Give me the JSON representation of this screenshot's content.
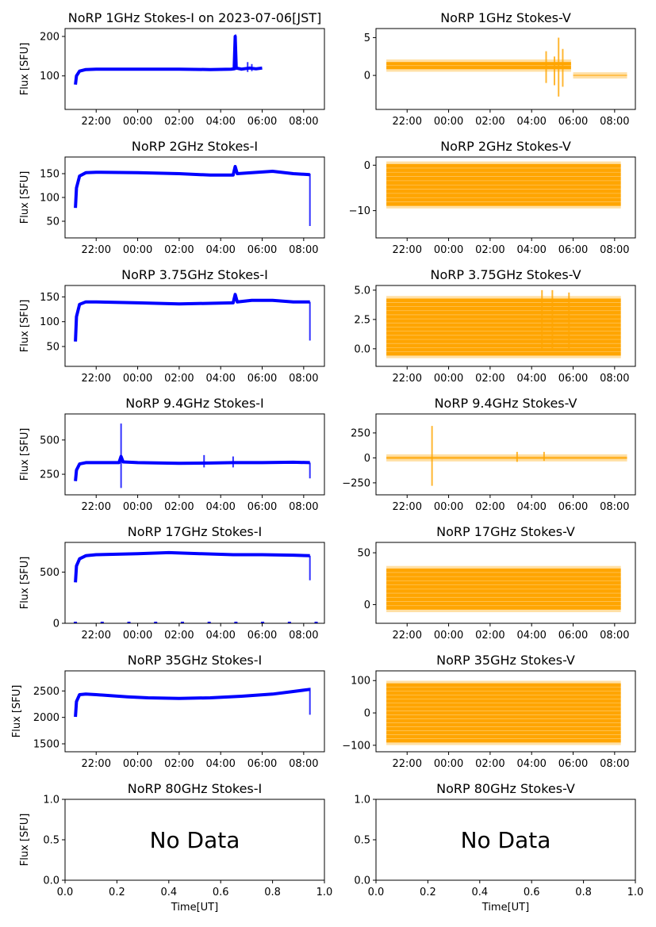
{
  "figure": {
    "background": "#ffffff",
    "colors": {
      "stokes_i": "#0000ff",
      "stokes_v": "#ffa500"
    }
  },
  "chart_data": [
    {
      "id": "1ghz-i",
      "type": "line",
      "title": "NoRP 1GHz Stokes-I on 2023-07-06[JST]",
      "xlabel": "",
      "ylabel": "Flux [SFU]",
      "xticks": [
        "22:00",
        "00:00",
        "02:00",
        "04:00",
        "06:00",
        "08:00"
      ],
      "xlim": [
        20.5,
        33.0
      ],
      "yticks": [
        {
          "value": 100,
          "label": "100"
        },
        {
          "value": 200,
          "label": "200"
        }
      ],
      "ylim": [
        15,
        220
      ],
      "series": [
        {
          "color": "#0000ff",
          "points": [
            [
              21.0,
              78
            ],
            [
              21.05,
              100
            ],
            [
              21.2,
              112
            ],
            [
              21.5,
              116
            ],
            [
              22.0,
              117
            ],
            [
              24.0,
              117
            ],
            [
              26.0,
              117
            ],
            [
              27.5,
              116
            ],
            [
              28.5,
              117
            ],
            [
              28.65,
              118
            ],
            [
              28.7,
              200
            ],
            [
              28.75,
              120
            ],
            [
              29.0,
              117
            ],
            [
              29.4,
              120
            ],
            [
              29.7,
              118
            ],
            [
              30.0,
              120
            ]
          ]
        }
      ],
      "spikes": [
        [
          28.72,
          115,
          205
        ],
        [
          29.3,
          110,
          135
        ],
        [
          29.5,
          112,
          130
        ]
      ]
    },
    {
      "id": "1ghz-v",
      "type": "line",
      "title": "NoRP 1GHz Stokes-V",
      "xlabel": "",
      "ylabel": "",
      "xticks": [
        "22:00",
        "00:00",
        "02:00",
        "04:00",
        "06:00",
        "08:00"
      ],
      "xlim": [
        20.5,
        33.0
      ],
      "yticks": [
        {
          "value": 0,
          "label": "0"
        },
        {
          "value": 5,
          "label": "5"
        }
      ],
      "ylim": [
        -4.5,
        6.2
      ],
      "bands": [
        [
          21.0,
          29.9,
          0.8,
          1.8
        ],
        [
          30.0,
          32.6,
          -0.1,
          0.1
        ]
      ],
      "spikes": [
        [
          28.7,
          -1.0,
          3.2
        ],
        [
          29.1,
          -1.3,
          2.5
        ],
        [
          29.3,
          -2.8,
          5.0
        ],
        [
          29.5,
          -1.5,
          3.5
        ]
      ]
    },
    {
      "id": "2ghz-i",
      "type": "line",
      "title": "NoRP 2GHz Stokes-I",
      "xlabel": "",
      "ylabel": "Flux [SFU]",
      "xticks": [
        "22:00",
        "00:00",
        "02:00",
        "04:00",
        "06:00",
        "08:00"
      ],
      "xlim": [
        20.5,
        33.0
      ],
      "yticks": [
        {
          "value": 50,
          "label": "50"
        },
        {
          "value": 100,
          "label": "100"
        },
        {
          "value": 150,
          "label": "150"
        }
      ],
      "ylim": [
        15,
        185
      ],
      "series": [
        {
          "color": "#0000ff",
          "points": [
            [
              21.0,
              78
            ],
            [
              21.05,
              120
            ],
            [
              21.2,
              145
            ],
            [
              21.5,
              152
            ],
            [
              22.0,
              153
            ],
            [
              24.0,
              152
            ],
            [
              26.0,
              150
            ],
            [
              27.5,
              147
            ],
            [
              28.6,
              147
            ],
            [
              28.7,
              165
            ],
            [
              28.8,
              150
            ],
            [
              29.5,
              152
            ],
            [
              30.5,
              155
            ],
            [
              31.5,
              150
            ],
            [
              32.3,
              148
            ]
          ]
        }
      ],
      "spikes": [
        [
          32.3,
          40,
          150
        ]
      ]
    },
    {
      "id": "2ghz-v",
      "type": "line",
      "title": "NoRP 2GHz Stokes-V",
      "xlabel": "",
      "ylabel": "",
      "xticks": [
        "22:00",
        "00:00",
        "02:00",
        "04:00",
        "06:00",
        "08:00"
      ],
      "xlim": [
        20.5,
        33.0
      ],
      "yticks": [
        {
          "value": -10,
          "label": "−10"
        },
        {
          "value": 0,
          "label": "0"
        }
      ],
      "ylim": [
        -16,
        1.8
      ],
      "bands": [
        [
          21.0,
          32.3,
          -9.0,
          0.3
        ]
      ],
      "spikes": []
    },
    {
      "id": "375ghz-i",
      "type": "line",
      "title": "NoRP 3.75GHz Stokes-I",
      "xlabel": "",
      "ylabel": "Flux [SFU]",
      "xticks": [
        "22:00",
        "00:00",
        "02:00",
        "04:00",
        "06:00",
        "08:00"
      ],
      "xlim": [
        20.5,
        33.0
      ],
      "yticks": [
        {
          "value": 50,
          "label": "50"
        },
        {
          "value": 100,
          "label": "100"
        },
        {
          "value": 150,
          "label": "150"
        }
      ],
      "ylim": [
        10,
        173
      ],
      "series": [
        {
          "color": "#0000ff",
          "points": [
            [
              21.0,
              60
            ],
            [
              21.05,
              110
            ],
            [
              21.2,
              135
            ],
            [
              21.5,
              140
            ],
            [
              22.0,
              140
            ],
            [
              24.0,
              138
            ],
            [
              26.0,
              136
            ],
            [
              27.5,
              137
            ],
            [
              28.6,
              138
            ],
            [
              28.7,
              155
            ],
            [
              28.8,
              140
            ],
            [
              29.5,
              143
            ],
            [
              30.5,
              143
            ],
            [
              31.5,
              140
            ],
            [
              32.3,
              140
            ]
          ]
        }
      ],
      "spikes": [
        [
          32.3,
          62,
          140
        ]
      ]
    },
    {
      "id": "375ghz-v",
      "type": "line",
      "title": "NoRP 3.75GHz Stokes-V",
      "xlabel": "",
      "ylabel": "",
      "xticks": [
        "22:00",
        "00:00",
        "02:00",
        "04:00",
        "06:00",
        "08:00"
      ],
      "xlim": [
        20.5,
        33.0
      ],
      "yticks": [
        {
          "value": 0,
          "label": "0.0"
        },
        {
          "value": 2.5,
          "label": "2.5"
        },
        {
          "value": 5,
          "label": "5.0"
        }
      ],
      "ylim": [
        -1.5,
        5.4
      ],
      "bands": [
        [
          21.0,
          32.3,
          -0.6,
          4.3
        ]
      ],
      "spikes": [
        [
          28.5,
          -0.2,
          5.0
        ],
        [
          29.0,
          0.0,
          5.0
        ],
        [
          29.8,
          0.0,
          4.8
        ]
      ]
    },
    {
      "id": "94ghz-i",
      "type": "line",
      "title": "NoRP 9.4GHz Stokes-I",
      "xlabel": "",
      "ylabel": "Flux [SFU]",
      "xticks": [
        "22:00",
        "00:00",
        "02:00",
        "04:00",
        "06:00",
        "08:00"
      ],
      "xlim": [
        20.5,
        33.0
      ],
      "yticks": [
        {
          "value": 250,
          "label": "250"
        },
        {
          "value": 500,
          "label": "500"
        }
      ],
      "ylim": [
        100,
        690
      ],
      "series": [
        {
          "color": "#0000ff",
          "points": [
            [
              21.0,
              200
            ],
            [
              21.05,
              280
            ],
            [
              21.2,
              325
            ],
            [
              21.5,
              335
            ],
            [
              22.0,
              335
            ],
            [
              23.1,
              335
            ],
            [
              23.2,
              380
            ],
            [
              23.3,
              340
            ],
            [
              24.0,
              335
            ],
            [
              26.0,
              330
            ],
            [
              27.5,
              332
            ],
            [
              28.6,
              335
            ],
            [
              30.0,
              335
            ],
            [
              31.5,
              338
            ],
            [
              32.3,
              335
            ]
          ]
        }
      ],
      "spikes": [
        [
          23.2,
          150,
          620
        ],
        [
          27.2,
          300,
          390
        ],
        [
          28.6,
          300,
          380
        ],
        [
          32.3,
          220,
          335
        ]
      ]
    },
    {
      "id": "94ghz-v",
      "type": "line",
      "title": "NoRP 9.4GHz Stokes-V",
      "xlabel": "",
      "ylabel": "",
      "xticks": [
        "22:00",
        "00:00",
        "02:00",
        "04:00",
        "06:00",
        "08:00"
      ],
      "xlim": [
        20.5,
        33.0
      ],
      "yticks": [
        {
          "value": -250,
          "label": "−250"
        },
        {
          "value": 0,
          "label": "0"
        },
        {
          "value": 250,
          "label": "250"
        }
      ],
      "ylim": [
        -370,
        440
      ],
      "bands": [
        [
          21.0,
          32.6,
          -12,
          12
        ]
      ],
      "spikes": [
        [
          23.2,
          -280,
          320
        ],
        [
          27.3,
          -40,
          60
        ],
        [
          28.6,
          -30,
          60
        ]
      ]
    },
    {
      "id": "17ghz-i",
      "type": "line",
      "title": "NoRP 17GHz Stokes-I",
      "xlabel": "",
      "ylabel": "Flux [SFU]",
      "xticks": [
        "22:00",
        "00:00",
        "02:00",
        "04:00",
        "06:00",
        "08:00"
      ],
      "xlim": [
        20.5,
        33.0
      ],
      "yticks": [
        {
          "value": 0,
          "label": "0"
        },
        {
          "value": 500,
          "label": "500"
        }
      ],
      "ylim": [
        0,
        790
      ],
      "series": [
        {
          "color": "#0000ff",
          "points": [
            [
              21.0,
              400
            ],
            [
              21.05,
              560
            ],
            [
              21.2,
              630
            ],
            [
              21.5,
              660
            ],
            [
              22.0,
              670
            ],
            [
              24.0,
              680
            ],
            [
              25.5,
              690
            ],
            [
              27.0,
              680
            ],
            [
              28.6,
              670
            ],
            [
              30.0,
              670
            ],
            [
              31.5,
              665
            ],
            [
              32.3,
              660
            ]
          ]
        }
      ],
      "spikes": [
        [
          32.3,
          420,
          660
        ]
      ],
      "baseline": [
        21.0,
        32.6,
        0
      ]
    },
    {
      "id": "17ghz-v",
      "type": "line",
      "title": "NoRP 17GHz Stokes-V",
      "xlabel": "",
      "ylabel": "",
      "xticks": [
        "22:00",
        "00:00",
        "02:00",
        "04:00",
        "06:00",
        "08:00"
      ],
      "xlim": [
        20.5,
        33.0
      ],
      "yticks": [
        {
          "value": 0,
          "label": "0"
        },
        {
          "value": 50,
          "label": "50"
        }
      ],
      "ylim": [
        -18,
        60
      ],
      "bands": [
        [
          21.0,
          32.3,
          -5,
          35
        ]
      ],
      "spikes": []
    },
    {
      "id": "35ghz-i",
      "type": "line",
      "title": "NoRP 35GHz Stokes-I",
      "xlabel": "",
      "ylabel": "Flux [SFU]",
      "xticks": [
        "22:00",
        "00:00",
        "02:00",
        "04:00",
        "06:00",
        "08:00"
      ],
      "xlim": [
        20.5,
        33.0
      ],
      "yticks": [
        {
          "value": 1500,
          "label": "1500"
        },
        {
          "value": 2000,
          "label": "2000"
        },
        {
          "value": 2500,
          "label": "2500"
        }
      ],
      "ylim": [
        1350,
        2880
      ],
      "series": [
        {
          "color": "#0000ff",
          "points": [
            [
              21.0,
              2010
            ],
            [
              21.05,
              2300
            ],
            [
              21.2,
              2430
            ],
            [
              21.5,
              2440
            ],
            [
              22.0,
              2430
            ],
            [
              23.5,
              2390
            ],
            [
              24.5,
              2370
            ],
            [
              26.0,
              2360
            ],
            [
              27.5,
              2370
            ],
            [
              29.0,
              2400
            ],
            [
              30.5,
              2440
            ],
            [
              31.5,
              2490
            ],
            [
              32.3,
              2530
            ]
          ]
        }
      ],
      "spikes": [
        [
          32.3,
          2050,
          2560
        ]
      ]
    },
    {
      "id": "35ghz-v",
      "type": "line",
      "title": "NoRP 35GHz Stokes-V",
      "xlabel": "",
      "ylabel": "",
      "xticks": [
        "22:00",
        "00:00",
        "02:00",
        "04:00",
        "06:00",
        "08:00"
      ],
      "xlim": [
        20.5,
        33.0
      ],
      "yticks": [
        {
          "value": -100,
          "label": "−100"
        },
        {
          "value": 0,
          "label": "0"
        },
        {
          "value": 100,
          "label": "100"
        }
      ],
      "ylim": [
        -120,
        130
      ],
      "bands": [
        [
          21.0,
          32.3,
          -92,
          92
        ]
      ],
      "spikes": []
    },
    {
      "id": "80ghz-i",
      "type": "line",
      "title": "NoRP 80GHz Stokes-I",
      "xlabel": "Time[UT]",
      "ylabel": "Flux [SFU]",
      "xticks": [
        "0.0",
        "0.2",
        "0.4",
        "0.6",
        "0.8",
        "1.0"
      ],
      "xlim": [
        0,
        1
      ],
      "yticks": [
        {
          "value": 0,
          "label": "0.0"
        },
        {
          "value": 0.5,
          "label": "0.5"
        },
        {
          "value": 1,
          "label": "1.0"
        }
      ],
      "ylim": [
        0,
        1
      ],
      "message": "No Data"
    },
    {
      "id": "80ghz-v",
      "type": "line",
      "title": "NoRP 80GHz Stokes-V",
      "xlabel": "Time[UT]",
      "ylabel": "",
      "xticks": [
        "0.0",
        "0.2",
        "0.4",
        "0.6",
        "0.8",
        "1.0"
      ],
      "xlim": [
        0,
        1
      ],
      "yticks": [
        {
          "value": 0,
          "label": "0.0"
        },
        {
          "value": 0.5,
          "label": "0.5"
        },
        {
          "value": 1,
          "label": "1.0"
        }
      ],
      "ylim": [
        0,
        1
      ],
      "message": "No Data"
    }
  ]
}
